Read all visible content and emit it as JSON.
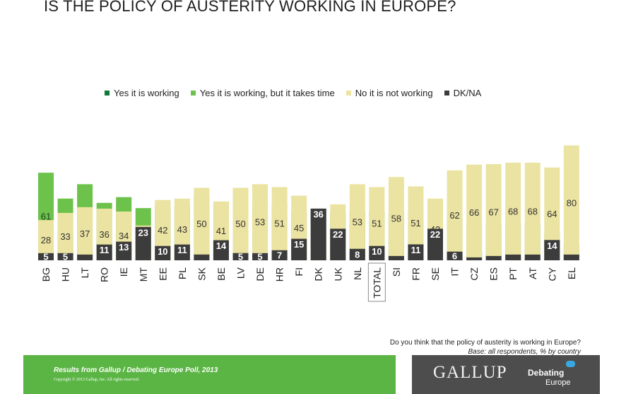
{
  "title": "IS THE POLICY OF AUSTERITY WORKING IN EUROPE?",
  "colors": {
    "yes": "#0d7a3a",
    "yes_time": "#6cc24a",
    "no": "#ebe3a1",
    "dk": "#3c3c3c",
    "total_box": "#8a8a8a"
  },
  "chart_data": {
    "type": "bar",
    "stacked": true,
    "normalized": true,
    "title": "IS THE POLICY OF AUSTERITY WORKING IN EUROPE?",
    "categories": [
      "BG",
      "HU",
      "LT",
      "RO",
      "IE",
      "MT",
      "EE",
      "PL",
      "SK",
      "BE",
      "LV",
      "DE",
      "HR",
      "FI",
      "DK",
      "UK",
      "NL",
      "TOTAL",
      "SI",
      "FR",
      "SE",
      "IT",
      "CZ",
      "ES",
      "PT",
      "AT",
      "CY",
      "EL"
    ],
    "series": [
      {
        "name": "Yes it is working",
        "values": [
          6,
          19,
          6,
          13,
          9,
          16,
          10,
          8,
          1,
          5,
          2,
          3,
          3,
          6,
          3,
          6,
          5,
          5,
          6,
          4,
          4,
          3,
          5,
          5,
          2,
          2,
          2,
          5
        ]
      },
      {
        "name": "Yes it is working, but it takes time",
        "values": [
          61,
          43,
          53,
          40,
          44,
          36,
          38,
          38,
          44,
          40,
          42,
          39,
          39,
          34,
          36,
          33,
          34,
          34,
          33,
          33,
          31,
          28,
          26,
          25,
          26,
          26,
          19,
          11
        ]
      },
      {
        "name": "No it is not working",
        "values": [
          28,
          33,
          37,
          36,
          34,
          24,
          42,
          43,
          50,
          41,
          50,
          53,
          51,
          45,
          25,
          39,
          53,
          51,
          58,
          51,
          43,
          62,
          66,
          67,
          68,
          68,
          64,
          80
        ]
      },
      {
        "name": "DK/NA",
        "values": [
          5,
          5,
          4,
          11,
          13,
          23,
          10,
          11,
          4,
          14,
          5,
          5,
          7,
          15,
          36,
          22,
          8,
          10,
          3,
          11,
          22,
          6,
          2,
          3,
          4,
          4,
          14,
          4
        ]
      }
    ],
    "shown_labels": [
      [
        "6",
        "61",
        "28",
        "5"
      ],
      [
        "19",
        "43",
        "33",
        "5"
      ],
      [
        "6",
        "53",
        "37",
        ""
      ],
      [
        "13",
        "40",
        "36",
        "11"
      ],
      [
        "9",
        "44",
        "34",
        "13"
      ],
      [
        "16",
        "36",
        "24",
        "23"
      ],
      [
        "10",
        "38",
        "42",
        "10"
      ],
      [
        "8",
        "38",
        "43",
        "11"
      ],
      [
        "1",
        "44",
        "50",
        ""
      ],
      [
        "5",
        "40",
        "41",
        "14"
      ],
      [
        "2",
        "42",
        "50",
        "5"
      ],
      [
        "3",
        "39",
        "53",
        "5"
      ],
      [
        "3",
        "39",
        "51",
        "7"
      ],
      [
        "6",
        "34",
        "45",
        "15"
      ],
      [
        "3",
        "36",
        "25",
        "36"
      ],
      [
        "6",
        "33",
        "39",
        "22"
      ],
      [
        "5",
        "34",
        "53",
        "8"
      ],
      [
        "5",
        "34",
        "51",
        "10"
      ],
      [
        "6",
        "33",
        "58",
        ""
      ],
      [
        "4",
        "33",
        "51",
        "11"
      ],
      [
        "4",
        "31",
        "43",
        "22"
      ],
      [
        "3",
        "28",
        "62",
        "6"
      ],
      [
        "5",
        "26",
        "66",
        ""
      ],
      [
        "5",
        "25",
        "67",
        ""
      ],
      [
        "2",
        "26",
        "68",
        ""
      ],
      [
        "2",
        "26",
        "68",
        ""
      ],
      [
        "2",
        "19",
        "64",
        "14"
      ],
      [
        "5",
        "11",
        "80",
        ""
      ]
    ],
    "ylim": [
      0,
      100
    ],
    "xlabel": "",
    "ylabel": "",
    "grid": false,
    "legend_position": "top"
  },
  "question": "Do you think that the policy of austerity is working in Europe?",
  "base": "Base: all respondents, % by country",
  "footer": {
    "title": "Results from Gallup / Debating Europe Poll, 2013",
    "copyright": "Copyright © 2013 Gallup, Inc. All rights reserved.",
    "gallup": "GALLUP",
    "debating": "Debating",
    "europe": "Europe"
  }
}
